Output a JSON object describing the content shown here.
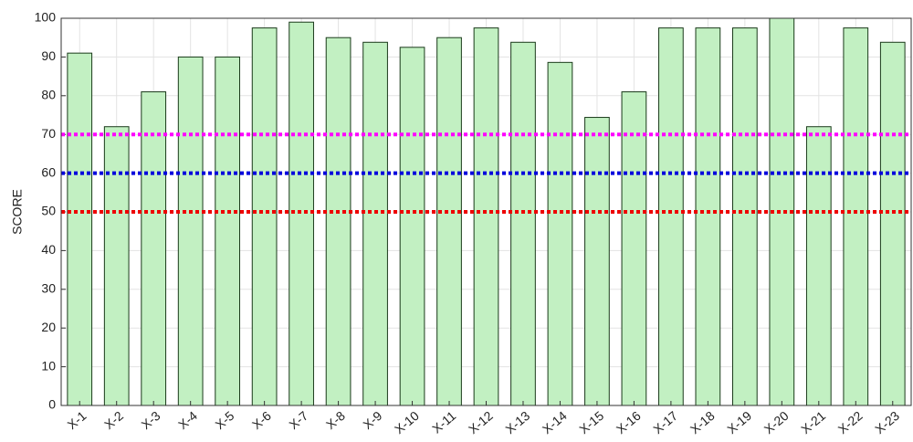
{
  "chart_data": {
    "type": "bar",
    "y_label": "SCORE",
    "categories": [
      "X-1",
      "X-2",
      "X-3",
      "X-4",
      "X-5",
      "X-6",
      "X-7",
      "X-8",
      "X-9",
      "X-10",
      "X-11",
      "X-12",
      "X-13",
      "X-14",
      "X-15",
      "X-16",
      "X-17",
      "X-18",
      "X-19",
      "X-20",
      "X-21",
      "X-22",
      "X-23"
    ],
    "values": [
      91,
      72,
      81,
      90,
      90,
      97.5,
      99,
      95,
      93.8,
      92.5,
      95,
      97.5,
      93.8,
      88.6,
      74.4,
      81,
      97.5,
      97.5,
      97.5,
      100,
      72,
      97.5,
      93.8
    ],
    "color": "#c2f0c2",
    "ylim": [
      0,
      100
    ],
    "yticks": [
      0,
      10,
      20,
      30,
      40,
      50,
      60,
      70,
      80,
      90,
      100
    ],
    "grid": true,
    "reference_lines": [
      {
        "value": 70,
        "color": "#ff00ff"
      },
      {
        "value": 60,
        "color": "#0000dd"
      },
      {
        "value": 50,
        "color": "#ee0000"
      }
    ]
  }
}
